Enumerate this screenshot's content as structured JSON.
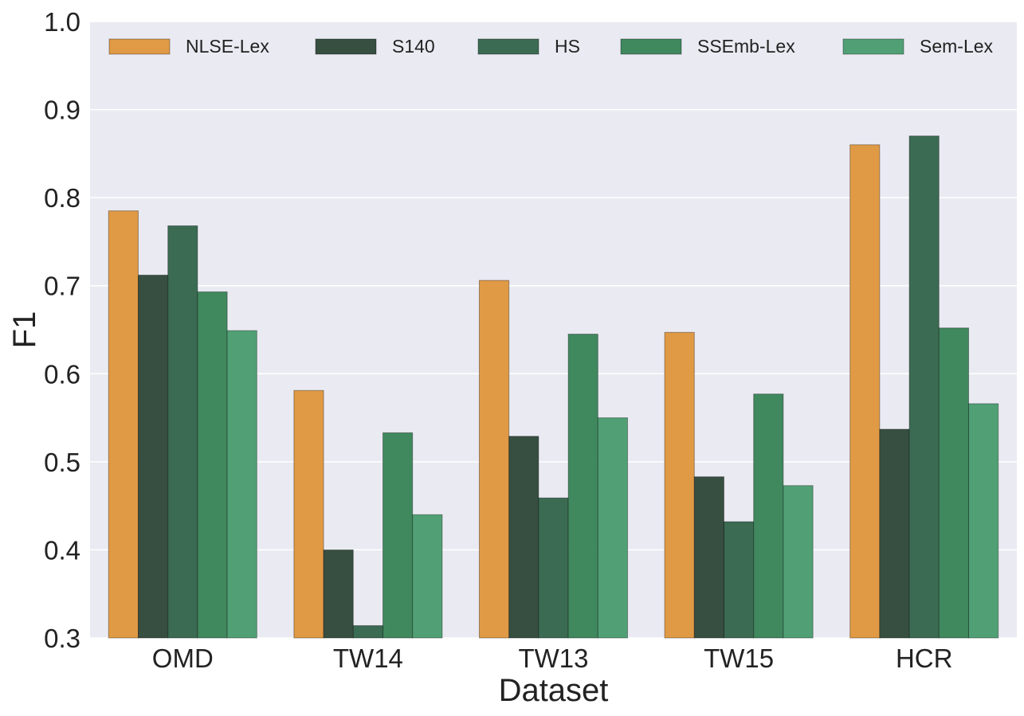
{
  "chart_data": {
    "type": "bar",
    "title": "",
    "xlabel": "Dataset",
    "ylabel": "F1",
    "ylim": [
      0.3,
      1.0
    ],
    "yticks": [
      "0.3",
      "0.4",
      "0.5",
      "0.6",
      "0.7",
      "0.8",
      "0.9",
      "1.0"
    ],
    "grid": true,
    "legend_position": "top",
    "categories": [
      "OMD",
      "TW14",
      "TW13",
      "TW15",
      "HCR"
    ],
    "series": [
      {
        "name": "NLSE-Lex",
        "color": "#e09a45",
        "values": [
          0.785,
          0.581,
          0.706,
          0.647,
          0.86
        ]
      },
      {
        "name": "S140",
        "color": "#374f41",
        "values": [
          0.712,
          0.4,
          0.529,
          0.483,
          0.537
        ]
      },
      {
        "name": "HS",
        "color": "#3b6b53",
        "values": [
          0.768,
          0.314,
          0.459,
          0.432,
          0.87
        ]
      },
      {
        "name": "SSEmb-Lex",
        "color": "#40885e",
        "values": [
          0.693,
          0.533,
          0.645,
          0.577,
          0.652
        ]
      },
      {
        "name": "Sem-Lex",
        "color": "#51a075",
        "values": [
          0.649,
          0.44,
          0.55,
          0.473,
          0.566
        ]
      }
    ],
    "background_color": "#eaeaf2",
    "grid_color": "#ffffff"
  }
}
